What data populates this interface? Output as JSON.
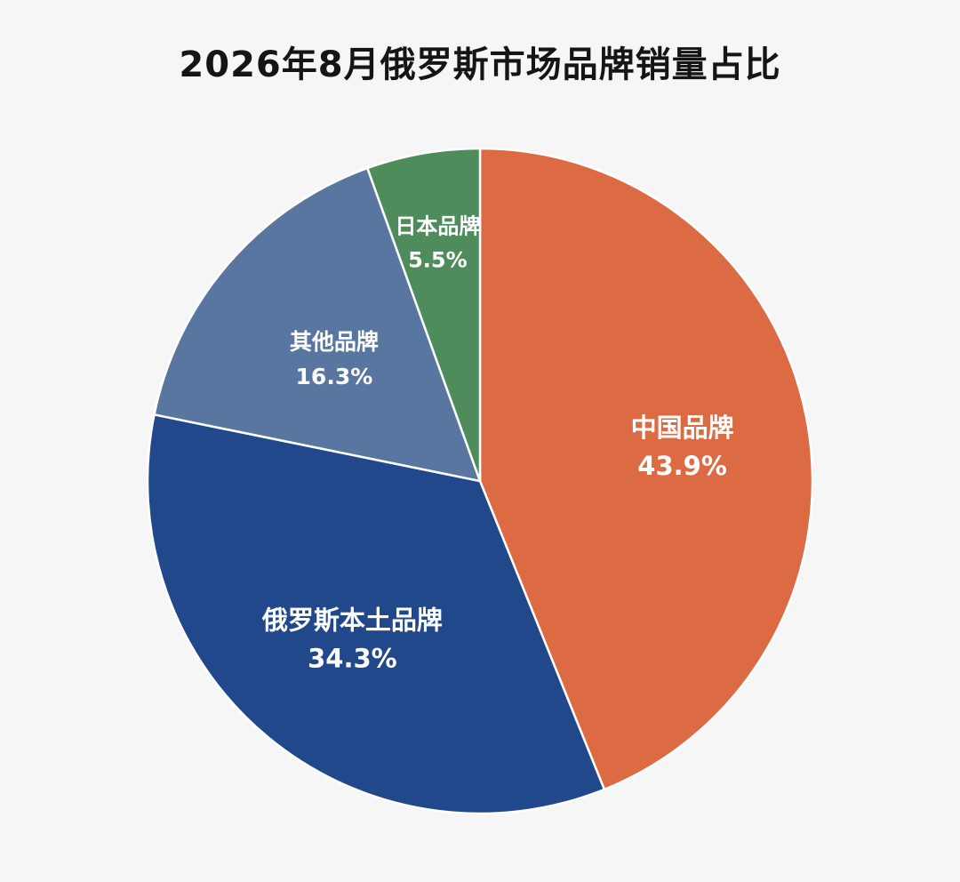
{
  "chart_data": {
    "type": "pie",
    "title": "2026年8月俄罗斯市场品牌销量占比",
    "slices": [
      {
        "label": "中国品牌",
        "value": 43.9,
        "display": "43.9%",
        "color": "#dc6a43"
      },
      {
        "label": "俄罗斯本土品牌",
        "value": 34.3,
        "display": "34.3%",
        "color": "#21488b"
      },
      {
        "label": "其他品牌",
        "value": 16.3,
        "display": "16.3%",
        "color": "#5876a0"
      },
      {
        "label": "日本品牌",
        "value": 5.5,
        "display": "5.5%",
        "color": "#4f8c5b"
      }
    ],
    "start_angle": "12 o'clock",
    "direction": "clockwise",
    "legend": "none (labels inside slices)"
  }
}
